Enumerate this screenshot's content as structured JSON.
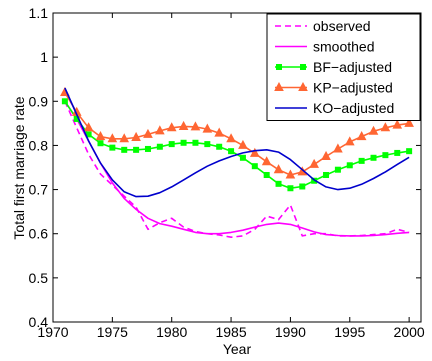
{
  "chart_data": {
    "type": "line",
    "title": "",
    "xlabel": "Year",
    "ylabel": "Total first marriage rate",
    "xlim": [
      1970,
      2001
    ],
    "ylim": [
      0.4,
      1.1
    ],
    "xticks": [
      1970,
      1975,
      1980,
      1985,
      1990,
      1995,
      2000
    ],
    "yticks": [
      0.4,
      0.5,
      0.6,
      0.7,
      0.8,
      0.9,
      1,
      1.1
    ],
    "xtick_labels": [
      "1970",
      "1975",
      "1980",
      "1985",
      "1990",
      "1995",
      "2000"
    ],
    "ytick_labels": [
      "0.4",
      "0.5",
      "0.6",
      "0.7",
      "0.8",
      "0.9",
      "1",
      "1.1"
    ],
    "grid": false,
    "legend_position": "top-right",
    "series": [
      {
        "name": "observed",
        "color": "#ff00ff",
        "style": "dashed",
        "marker": "none",
        "x": [
          1971,
          1972,
          1973,
          1974,
          1975,
          1976,
          1977,
          1978,
          1979,
          1980,
          1981,
          1982,
          1983,
          1984,
          1985,
          1986,
          1987,
          1988,
          1989,
          1990,
          1991,
          1992,
          1993,
          1994,
          1995,
          1996,
          1997,
          1998,
          1999,
          2000
        ],
        "y": [
          0.9,
          0.84,
          0.78,
          0.735,
          0.71,
          0.685,
          0.66,
          0.61,
          0.625,
          0.635,
          0.615,
          0.605,
          0.6,
          0.597,
          0.592,
          0.595,
          0.61,
          0.64,
          0.632,
          0.665,
          0.595,
          0.6,
          0.6,
          0.595,
          0.595,
          0.596,
          0.598,
          0.6,
          0.61,
          0.603
        ]
      },
      {
        "name": "smoothed",
        "color": "#ff00ff",
        "style": "solid",
        "marker": "none",
        "x": [
          1971,
          1972,
          1973,
          1974,
          1975,
          1976,
          1977,
          1978,
          1979,
          1980,
          1981,
          1982,
          1983,
          1984,
          1985,
          1986,
          1987,
          1988,
          1989,
          1990,
          1991,
          1992,
          1993,
          1994,
          1995,
          1996,
          1997,
          1998,
          1999,
          2000
        ],
        "y": [
          0.9,
          0.86,
          0.81,
          0.76,
          0.715,
          0.68,
          0.655,
          0.635,
          0.623,
          0.617,
          0.61,
          0.603,
          0.6,
          0.6,
          0.603,
          0.608,
          0.615,
          0.621,
          0.624,
          0.621,
          0.613,
          0.604,
          0.598,
          0.596,
          0.595,
          0.595,
          0.596,
          0.598,
          0.601,
          0.603
        ]
      },
      {
        "name": "BF−adjusted",
        "color": "#00ff00",
        "style": "solid",
        "marker": "square",
        "x": [
          1971,
          1972,
          1973,
          1974,
          1975,
          1976,
          1977,
          1978,
          1979,
          1980,
          1981,
          1982,
          1983,
          1984,
          1985,
          1986,
          1987,
          1988,
          1989,
          1990,
          1991,
          1992,
          1993,
          1994,
          1995,
          1996,
          1997,
          1998,
          1999,
          2000
        ],
        "y": [
          0.9,
          0.86,
          0.825,
          0.805,
          0.795,
          0.79,
          0.79,
          0.792,
          0.797,
          0.803,
          0.806,
          0.806,
          0.803,
          0.797,
          0.787,
          0.772,
          0.753,
          0.733,
          0.713,
          0.703,
          0.707,
          0.72,
          0.733,
          0.745,
          0.755,
          0.765,
          0.772,
          0.778,
          0.783,
          0.787
        ]
      },
      {
        "name": "KP−adjusted",
        "color": "#ff6633",
        "style": "solid",
        "marker": "triangle",
        "x": [
          1971,
          1972,
          1973,
          1974,
          1975,
          1976,
          1977,
          1978,
          1979,
          1980,
          1981,
          1982,
          1983,
          1984,
          1985,
          1986,
          1987,
          1988,
          1989,
          1990,
          1991,
          1992,
          1993,
          1994,
          1995,
          1996,
          1997,
          1998,
          1999,
          2000
        ],
        "y": [
          0.92,
          0.875,
          0.84,
          0.82,
          0.815,
          0.815,
          0.818,
          0.825,
          0.833,
          0.84,
          0.843,
          0.842,
          0.837,
          0.828,
          0.815,
          0.8,
          0.782,
          0.763,
          0.745,
          0.733,
          0.74,
          0.757,
          0.775,
          0.792,
          0.808,
          0.82,
          0.832,
          0.84,
          0.846,
          0.85
        ]
      },
      {
        "name": "KO−adjusted",
        "color": "#0000cc",
        "style": "solid",
        "marker": "none",
        "x": [
          1971,
          1972,
          1973,
          1974,
          1975,
          1976,
          1977,
          1978,
          1979,
          1980,
          1981,
          1982,
          1983,
          1984,
          1985,
          1986,
          1987,
          1988,
          1989,
          1990,
          1991,
          1992,
          1993,
          1994,
          1995,
          1996,
          1997,
          1998,
          1999,
          2000
        ],
        "y": [
          0.93,
          0.87,
          0.81,
          0.76,
          0.722,
          0.695,
          0.684,
          0.685,
          0.693,
          0.706,
          0.722,
          0.738,
          0.753,
          0.765,
          0.775,
          0.783,
          0.788,
          0.79,
          0.785,
          0.768,
          0.745,
          0.722,
          0.706,
          0.7,
          0.703,
          0.712,
          0.725,
          0.74,
          0.757,
          0.773
        ]
      }
    ]
  }
}
